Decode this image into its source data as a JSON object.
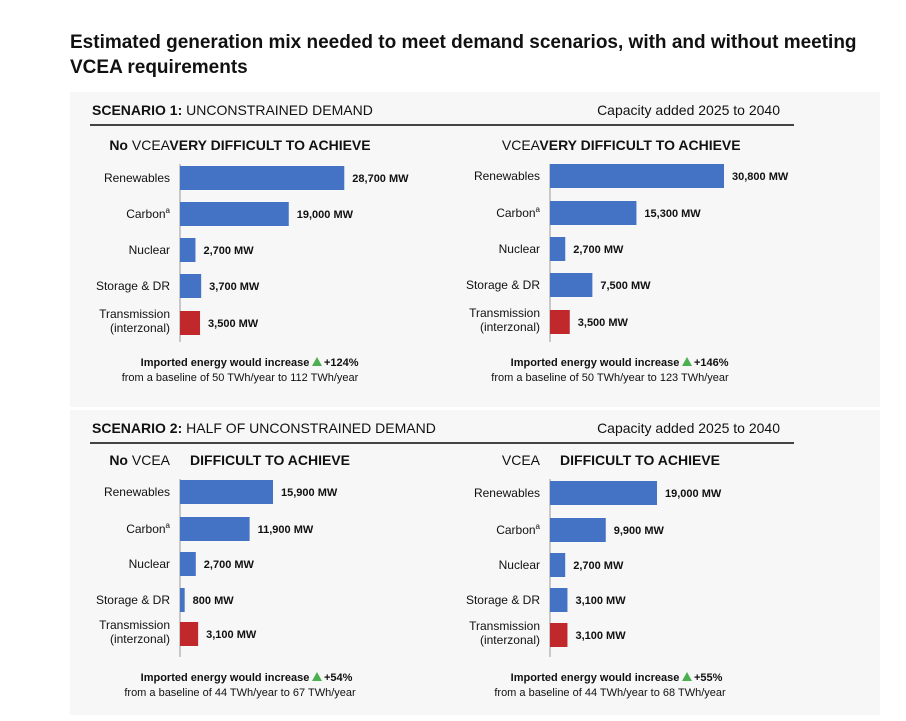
{
  "title": "Estimated generation mix needed to meet demand scenarios, with and without meeting VCEA requirements",
  "colors": {
    "blue": "#4472c4",
    "red": "#c0282b",
    "green": "#4caf50",
    "rule": "#444444"
  },
  "scenarios": [
    {
      "heading_bold": "SCENARIO 1:",
      "heading_rest": " UNCONSTRAINED DEMAND",
      "capacity_label": "Capacity added 2025 to 2040"
    },
    {
      "heading_bold": "SCENARIO 2:",
      "heading_rest": " HALF OF UNCONSTRAINED DEMAND",
      "capacity_label": "Capacity added 2025 to 2040"
    }
  ],
  "chart_data": [
    {
      "type": "bar",
      "orientation": "horizontal",
      "case_bold": "No",
      "case_rest": " VCEA",
      "difficulty": "VERY DIFFICULT TO ACHIEVE",
      "categories": [
        "Renewables",
        "Carbon",
        "Nuclear",
        "Storage & DR",
        "Transmission (interzonal)"
      ],
      "values": [
        28700,
        19000,
        2700,
        3700,
        3500
      ],
      "value_labels": [
        "28,700 MW",
        "19,000 MW",
        "2,700 MW",
        "3,700 MW",
        "3,500 MW"
      ],
      "import_text": "Imported energy would increase",
      "import_change": "+124%",
      "import_baseline": "from a baseline of 50 TWh/year to 112 TWh/year"
    },
    {
      "type": "bar",
      "orientation": "horizontal",
      "case_bold": "",
      "case_rest": "VCEA",
      "difficulty": "VERY DIFFICULT TO ACHIEVE",
      "categories": [
        "Renewables",
        "Carbon",
        "Nuclear",
        "Storage & DR",
        "Transmission (interzonal)"
      ],
      "values": [
        30800,
        15300,
        2700,
        7500,
        3500
      ],
      "value_labels": [
        "30,800 MW",
        "15,300 MW",
        "2,700 MW",
        "7,500 MW",
        "3,500 MW"
      ],
      "import_text": "Imported energy would increase",
      "import_change": "+146%",
      "import_baseline": "from a baseline of 50 TWh/year to 123 TWh/year"
    },
    {
      "type": "bar",
      "orientation": "horizontal",
      "case_bold": "No",
      "case_rest": " VCEA",
      "difficulty": "DIFFICULT TO ACHIEVE",
      "categories": [
        "Renewables",
        "Carbon",
        "Nuclear",
        "Storage & DR",
        "Transmission (interzonal)"
      ],
      "values": [
        15900,
        11900,
        2700,
        800,
        3100
      ],
      "value_labels": [
        "15,900 MW",
        "11,900 MW",
        "2,700 MW",
        "800 MW",
        "3,100 MW"
      ],
      "import_text": "Imported energy would increase",
      "import_change": "+54%",
      "import_baseline": "from a baseline of 44 TWh/year to 67 TWh/year"
    },
    {
      "type": "bar",
      "orientation": "horizontal",
      "case_bold": "",
      "case_rest": "VCEA",
      "difficulty": "DIFFICULT TO ACHIEVE",
      "categories": [
        "Renewables",
        "Carbon",
        "Nuclear",
        "Storage & DR",
        "Transmission (interzonal)"
      ],
      "values": [
        19000,
        9900,
        2700,
        3100,
        3100
      ],
      "value_labels": [
        "19,000 MW",
        "9,900 MW",
        "2,700 MW",
        "3,100 MW",
        "3,100 MW"
      ],
      "import_text": "Imported energy would increase",
      "import_change": "+55%",
      "import_baseline": "from a baseline of 44 TWh/year to 68 TWh/year"
    }
  ]
}
